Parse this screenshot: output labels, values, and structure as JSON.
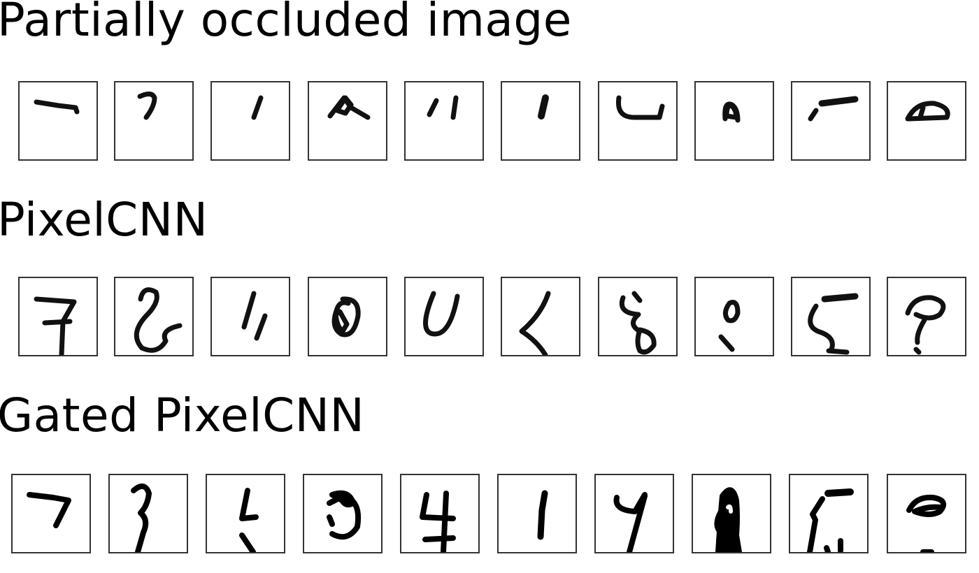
{
  "sections": {
    "occluded": {
      "title": "Partially occluded image",
      "tile_count": 10
    },
    "pixelcnn": {
      "title": "PixelCNN",
      "tile_count": 10
    },
    "gated": {
      "title": "Gated PixelCNN",
      "tile_count": 10
    }
  },
  "colors": {
    "ink": "#000000",
    "frame": "#333333",
    "background": "#ffffff"
  }
}
